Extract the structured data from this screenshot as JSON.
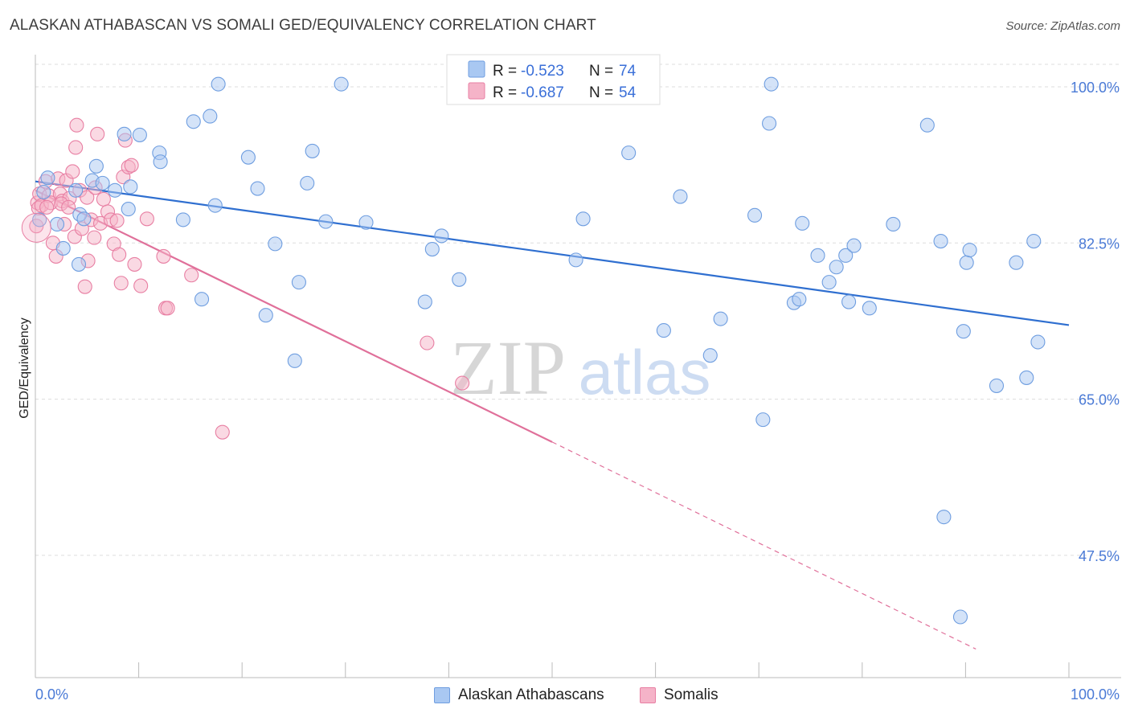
{
  "title": "ALASKAN ATHABASCAN VS SOMALI GED/EQUIVALENCY CORRELATION CHART",
  "source": "Source: ZipAtlas.com",
  "watermark": {
    "zip": "ZIP",
    "atlas": "atlas"
  },
  "colors": {
    "blue_fill": "#a9c8f2",
    "blue_stroke": "#6f9ee0",
    "blue_line": "#2f6fd0",
    "pink_fill": "#f5b3c8",
    "pink_stroke": "#e87fa3",
    "pink_line": "#e0709a",
    "grid": "#dddddd",
    "tick_label": "#4a7ad6"
  },
  "legend": {
    "rows": [
      {
        "r_label": "R =",
        "r_value": "-0.523",
        "n_label": "N =",
        "n_value": "74",
        "series": "blue"
      },
      {
        "r_label": "R =",
        "r_value": "-0.687",
        "n_label": "N =",
        "n_value": "54",
        "series": "pink"
      }
    ]
  },
  "bottom_legend": {
    "items": [
      {
        "label": "Alaskan Athabascans",
        "series": "blue"
      },
      {
        "label": "Somalis",
        "series": "pink"
      }
    ]
  },
  "chart_data": {
    "type": "scatter",
    "xlabel": "",
    "ylabel": "GED/Equivalency",
    "xlim": [
      0,
      100
    ],
    "ylim": [
      33.8,
      103.6
    ],
    "x_tick_labels": [
      "0.0%",
      "100.0%"
    ],
    "y_ticks": [
      {
        "value": 100.0,
        "label": "100.0%"
      },
      {
        "value": 82.5,
        "label": "82.5%"
      },
      {
        "value": 65.0,
        "label": "65.0%"
      },
      {
        "value": 47.5,
        "label": "47.5%"
      }
    ],
    "grid": true,
    "legend_position": "top-center",
    "series": [
      {
        "name": "Alaskan Athabascans",
        "color": "blue",
        "trend": {
          "x0": 0,
          "y0": 89.4,
          "x1": 100,
          "y1": 73.3
        },
        "points": [
          [
            0.4,
            85.1
          ],
          [
            0.8,
            88.2
          ],
          [
            1.2,
            89.8
          ],
          [
            2.1,
            84.6
          ],
          [
            2.7,
            81.9
          ],
          [
            3.9,
            88.4
          ],
          [
            4.2,
            80.1
          ],
          [
            4.3,
            85.7
          ],
          [
            4.7,
            85.2
          ],
          [
            5.5,
            89.5
          ],
          [
            5.9,
            91.1
          ],
          [
            6.5,
            89.2
          ],
          [
            7.7,
            88.4
          ],
          [
            8.6,
            94.7
          ],
          [
            9.0,
            86.3
          ],
          [
            9.2,
            88.8
          ],
          [
            10.1,
            94.6
          ],
          [
            12.0,
            92.6
          ],
          [
            12.1,
            91.6
          ],
          [
            14.3,
            85.1
          ],
          [
            15.3,
            96.1
          ],
          [
            16.1,
            76.2
          ],
          [
            16.9,
            96.7
          ],
          [
            17.4,
            86.7
          ],
          [
            17.7,
            100.3
          ],
          [
            20.6,
            92.1
          ],
          [
            21.5,
            88.6
          ],
          [
            22.3,
            74.4
          ],
          [
            23.2,
            82.4
          ],
          [
            25.1,
            69.3
          ],
          [
            25.5,
            78.1
          ],
          [
            26.3,
            89.2
          ],
          [
            26.8,
            92.8
          ],
          [
            28.1,
            84.9
          ],
          [
            29.6,
            100.3
          ],
          [
            32.0,
            84.8
          ],
          [
            37.7,
            75.9
          ],
          [
            38.4,
            81.8
          ],
          [
            39.3,
            83.3
          ],
          [
            41.0,
            78.4
          ],
          [
            52.3,
            80.6
          ],
          [
            53.0,
            85.2
          ],
          [
            57.4,
            92.6
          ],
          [
            60.8,
            72.7
          ],
          [
            62.4,
            87.7
          ],
          [
            65.3,
            69.9
          ],
          [
            66.3,
            74.0
          ],
          [
            69.6,
            85.6
          ],
          [
            70.4,
            62.7
          ],
          [
            71.0,
            95.9
          ],
          [
            71.2,
            100.3
          ],
          [
            73.4,
            75.8
          ],
          [
            73.9,
            76.2
          ],
          [
            74.2,
            84.7
          ],
          [
            75.7,
            81.1
          ],
          [
            76.8,
            78.1
          ],
          [
            77.5,
            79.8
          ],
          [
            78.4,
            81.1
          ],
          [
            78.7,
            75.9
          ],
          [
            79.2,
            82.2
          ],
          [
            80.7,
            75.2
          ],
          [
            83.0,
            84.6
          ],
          [
            86.3,
            95.7
          ],
          [
            87.6,
            82.7
          ],
          [
            87.9,
            51.8
          ],
          [
            89.5,
            40.6
          ],
          [
            89.8,
            72.6
          ],
          [
            90.1,
            80.3
          ],
          [
            90.4,
            81.7
          ],
          [
            93.0,
            66.5
          ],
          [
            95.9,
            67.4
          ],
          [
            97.0,
            71.4
          ],
          [
            96.6,
            82.7
          ],
          [
            94.9,
            80.3
          ]
        ]
      },
      {
        "name": "Somalis",
        "color": "pink",
        "trend": {
          "x0": 0,
          "y0": 88.4,
          "x1": 50,
          "y1": 60.2,
          "x_dash_end": 91,
          "y_dash_end": 37.0
        },
        "points": [
          [
            0.2,
            87.0
          ],
          [
            0.3,
            86.4
          ],
          [
            0.4,
            88.0
          ],
          [
            0.6,
            86.7
          ],
          [
            1.0,
            89.4
          ],
          [
            1.3,
            87.8
          ],
          [
            1.5,
            87.0
          ],
          [
            1.7,
            82.5
          ],
          [
            2.0,
            81.0
          ],
          [
            2.2,
            89.7
          ],
          [
            2.4,
            88.0
          ],
          [
            2.6,
            87.2
          ],
          [
            2.8,
            84.6
          ],
          [
            3.0,
            89.5
          ],
          [
            3.3,
            87.5
          ],
          [
            3.6,
            90.5
          ],
          [
            3.8,
            83.2
          ],
          [
            3.9,
            93.2
          ],
          [
            4.0,
            95.7
          ],
          [
            4.3,
            88.4
          ],
          [
            4.5,
            84.1
          ],
          [
            4.8,
            77.6
          ],
          [
            5.0,
            87.6
          ],
          [
            5.1,
            80.5
          ],
          [
            5.4,
            85.1
          ],
          [
            5.7,
            83.1
          ],
          [
            5.8,
            88.7
          ],
          [
            6.0,
            94.7
          ],
          [
            6.3,
            84.7
          ],
          [
            6.6,
            87.4
          ],
          [
            7.0,
            86.0
          ],
          [
            7.3,
            85.1
          ],
          [
            7.6,
            82.4
          ],
          [
            7.9,
            85.0
          ],
          [
            8.1,
            81.2
          ],
          [
            8.3,
            78.0
          ],
          [
            8.5,
            89.9
          ],
          [
            8.7,
            94.0
          ],
          [
            9.0,
            91.0
          ],
          [
            9.3,
            91.2
          ],
          [
            9.6,
            80.1
          ],
          [
            10.2,
            77.7
          ],
          [
            10.8,
            85.2
          ],
          [
            12.4,
            81.0
          ],
          [
            12.6,
            75.2
          ],
          [
            12.8,
            75.2
          ],
          [
            15.1,
            78.9
          ],
          [
            18.1,
            61.3
          ],
          [
            37.9,
            71.3
          ],
          [
            41.3,
            66.8
          ],
          [
            0.1,
            84.4
          ],
          [
            1.1,
            86.5
          ],
          [
            2.5,
            86.9
          ],
          [
            3.2,
            86.5
          ]
        ]
      }
    ]
  }
}
